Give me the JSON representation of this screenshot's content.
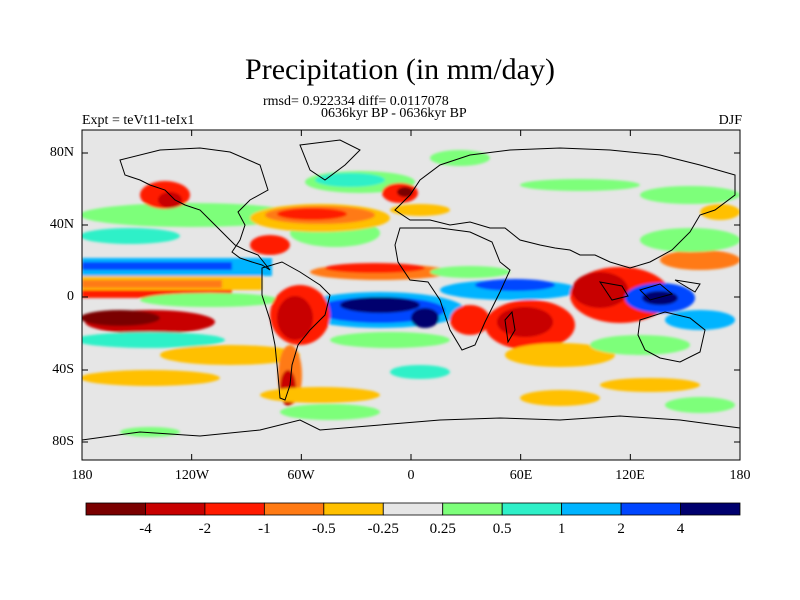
{
  "title": "Precipitation (in mm/day)",
  "stats_line": "rmsd= 0.922334 diff= 0.0117078",
  "period_line": "0636kyr BP - 0636kyr BP",
  "left_label": "Expt = teVt11-teIx1",
  "right_label": "DJF",
  "lat_ticks": [
    "80N",
    "40N",
    "0",
    "40S",
    "80S"
  ],
  "lon_ticks": [
    "180",
    "120W",
    "60W",
    "0",
    "60E",
    "120E",
    "180"
  ],
  "colorbar": {
    "labels": [
      "-4",
      "-2",
      "-1",
      "-0.5",
      "-0.25",
      "0.25",
      "0.5",
      "1",
      "2",
      "4"
    ],
    "colors": [
      "#7a0000",
      "#c80000",
      "#ff1a00",
      "#ff7a14",
      "#ffc000",
      "#e6e6e6",
      "#7dff7a",
      "#2ef0c8",
      "#00b4ff",
      "#0046ff",
      "#00006e"
    ]
  },
  "colors": {
    "background_field": "#e6e6e6",
    "coastline": "#000000"
  }
}
